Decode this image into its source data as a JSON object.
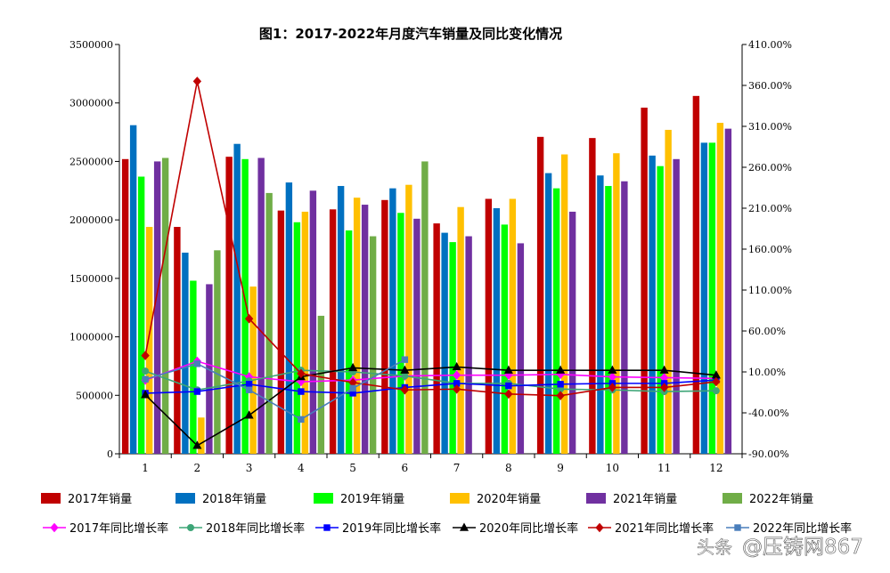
{
  "chart_data": {
    "type": "bar",
    "title": "图1：2017-2022年月度汽车销量及同比变化情况",
    "categories": [
      "1",
      "2",
      "3",
      "4",
      "5",
      "6",
      "7",
      "8",
      "9",
      "10",
      "11",
      "12"
    ],
    "y_left": {
      "min": 0,
      "max": 3500000,
      "step": 500000,
      "tick_labels": [
        "0",
        "500000",
        "1000000",
        "1500000",
        "2000000",
        "2500000",
        "3000000",
        "3500000"
      ]
    },
    "y_right": {
      "min": -90,
      "max": 410,
      "step": 50,
      "tick_labels": [
        "-90.00%",
        "-40.00%",
        "10.00%",
        "60.00%",
        "110.00%",
        "160.00%",
        "210.00%",
        "260.00%",
        "310.00%",
        "360.00%",
        "410.00%"
      ]
    },
    "bar_series": [
      {
        "name": "2017年销量",
        "color": "#C00000",
        "values": [
          2520000,
          1940000,
          2540000,
          2080000,
          2090000,
          2170000,
          1970000,
          2180000,
          2710000,
          2700000,
          2960000,
          3060000
        ]
      },
      {
        "name": "2018年销量",
        "color": "#0070C0",
        "values": [
          2810000,
          1720000,
          2650000,
          2320000,
          2290000,
          2270000,
          1890000,
          2100000,
          2400000,
          2380000,
          2550000,
          2660000
        ]
      },
      {
        "name": "2019年销量",
        "color": "#00FF00",
        "values": [
          2370000,
          1480000,
          2520000,
          1980000,
          1910000,
          2060000,
          1810000,
          1960000,
          2270000,
          2290000,
          2460000,
          2660000
        ]
      },
      {
        "name": "2020年销量",
        "color": "#FFC000",
        "values": [
          1940000,
          310000,
          1430000,
          2070000,
          2190000,
          2300000,
          2110000,
          2180000,
          2560000,
          2570000,
          2770000,
          2830000
        ]
      },
      {
        "name": "2021年销量",
        "color": "#7030A0",
        "values": [
          2500000,
          1450000,
          2530000,
          2250000,
          2130000,
          2010000,
          1860000,
          1800000,
          2070000,
          2330000,
          2520000,
          2780000
        ]
      },
      {
        "name": "2022年销量",
        "color": "#70AD47",
        "values": [
          2530000,
          1740000,
          2230000,
          1180000,
          1860000,
          2500000,
          null,
          null,
          null,
          null,
          null,
          null
        ]
      }
    ],
    "line_series": [
      {
        "name": "2017年同比增长率",
        "color": "#FF00FF",
        "marker": "diamond",
        "values": [
          0,
          23,
          4,
          -2,
          0,
          5,
          6,
          6,
          7,
          4,
          3,
          2
        ]
      },
      {
        "name": "2018年同比增长率",
        "color": "#3DA577",
        "marker": "circle",
        "values": [
          11,
          -12,
          -1,
          12,
          10,
          5,
          -4,
          -4,
          -11,
          -12,
          -14,
          -13
        ]
      },
      {
        "name": "2019年同比增长率",
        "color": "#0000FF",
        "marker": "square",
        "values": [
          -16,
          -14,
          -5,
          -14,
          -16,
          -9,
          -4,
          -7,
          -5,
          -4,
          -4,
          0
        ]
      },
      {
        "name": "2020年同比增长率",
        "color": "#000000",
        "marker": "triangle",
        "values": [
          -18,
          -80,
          -43,
          4,
          15,
          12,
          16,
          12,
          12,
          12,
          12,
          6
        ]
      },
      {
        "name": "2021年同比增长率",
        "color": "#C00000",
        "marker": "diamond",
        "values": [
          30,
          365,
          75,
          8,
          -3,
          -12,
          -11,
          -17,
          -19,
          -9,
          -9,
          -2
        ]
      },
      {
        "name": "2022年同比增长率",
        "color": "#4A7EBB",
        "marker": "square",
        "values": [
          1,
          20,
          -12,
          -48,
          -10,
          25,
          null,
          null,
          null,
          null,
          null,
          null
        ]
      }
    ],
    "legend_placement": "bottom",
    "grid": false
  },
  "watermark": {
    "platform": "头条",
    "account": "@压铸网867"
  }
}
